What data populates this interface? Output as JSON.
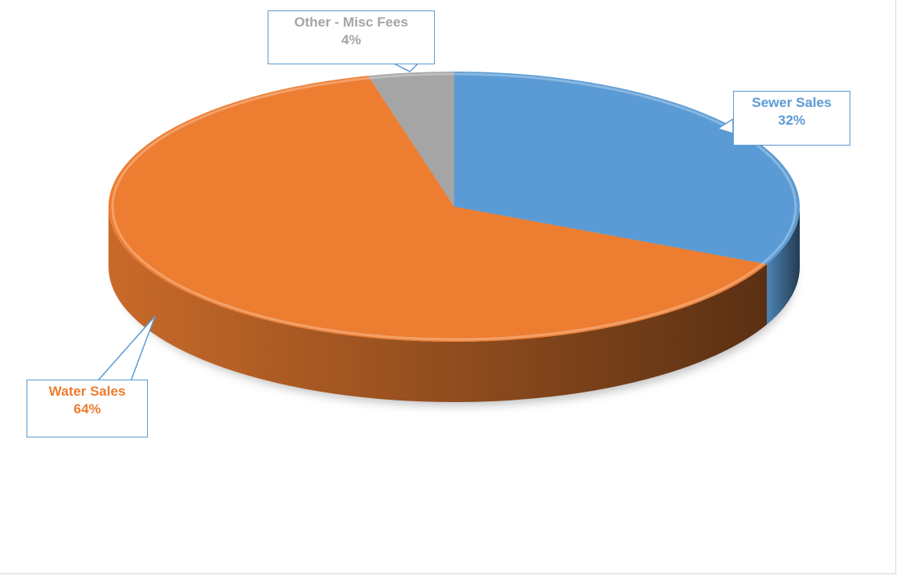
{
  "chart_data": {
    "type": "pie",
    "title": "",
    "three_d": true,
    "legend": "none",
    "slices": [
      {
        "label": "Sewer Sales",
        "pct_label": "32%",
        "value": 32,
        "color": "#5b9bd5"
      },
      {
        "label": "Water Sales",
        "pct_label": "64%",
        "value": 64,
        "color": "#ed7d31"
      },
      {
        "label": "Other - Misc Fees",
        "pct_label": "4%",
        "value": 4,
        "color": "#a5a5a5"
      }
    ]
  }
}
